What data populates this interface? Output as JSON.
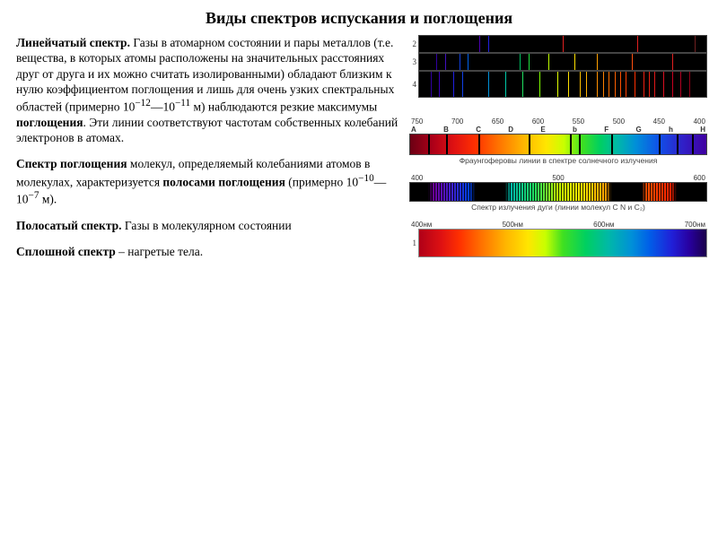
{
  "title": "Виды спектров испускания и поглощения",
  "para1_html": "<b>Линейчатый спектр.</b> Газы в атомарном состоянии и пары металлов (т.е. вещества, в которых атомы расположены на значительных расстояниях друг от друга и их можно считать изолированными) обладают близким к нулю коэффициентом поглощения и лишь для очень узких спектральных областей (примерно 10<sup>−12</sup>—10<sup>−11</sup> м) наблюдаются резкие максимумы <b>поглощения</b>. Эти линии соответствуют частотам собственных колебаний электронов в атомах.",
  "para2_html": "<b>Спектр поглощения</b> молекул, определяемый колебаниями атомов в молекулах, характеризуется <b>полосами поглощения</b> (примерно 10<sup>−10</sup>—10<sup>−7</sup> м).",
  "para3_html": "<b>Полосатый спектр.</b> Газы в молекулярном состоянии",
  "para4_html": "<b>Сплошной спектр</b> – нагретые тела.",
  "emission_bars": [
    {
      "num": "2",
      "lines": [
        {
          "pos": 21,
          "color": "#4c00b0"
        },
        {
          "pos": 24,
          "color": "#2020e0"
        },
        {
          "pos": 50,
          "color": "#e02020"
        },
        {
          "pos": 76,
          "color": "#e02020"
        },
        {
          "pos": 96,
          "color": "#702020"
        }
      ]
    },
    {
      "num": "3",
      "lines": [
        {
          "pos": 6,
          "color": "#3000a0"
        },
        {
          "pos": 9,
          "color": "#4010c0"
        },
        {
          "pos": 14,
          "color": "#1040e0"
        },
        {
          "pos": 17,
          "color": "#0060e8"
        },
        {
          "pos": 35,
          "color": "#00c060"
        },
        {
          "pos": 38,
          "color": "#20e040"
        },
        {
          "pos": 45,
          "color": "#c0ff00"
        },
        {
          "pos": 54,
          "color": "#ffe000"
        },
        {
          "pos": 62,
          "color": "#ffa000"
        },
        {
          "pos": 74,
          "color": "#ff5010"
        },
        {
          "pos": 88,
          "color": "#e02020"
        }
      ]
    },
    {
      "num": "4",
      "height": 30,
      "lines": [
        {
          "pos": 4,
          "color": "#3000a0"
        },
        {
          "pos": 7,
          "color": "#3800b8"
        },
        {
          "pos": 12,
          "color": "#2020e0"
        },
        {
          "pos": 15,
          "color": "#1040e8"
        },
        {
          "pos": 24,
          "color": "#0090d8"
        },
        {
          "pos": 30,
          "color": "#00c8a8"
        },
        {
          "pos": 36,
          "color": "#20e060"
        },
        {
          "pos": 42,
          "color": "#80ff00"
        },
        {
          "pos": 48,
          "color": "#e0ff00"
        },
        {
          "pos": 52,
          "color": "#ffe000"
        },
        {
          "pos": 56,
          "color": "#ffc000"
        },
        {
          "pos": 58,
          "color": "#ffb000"
        },
        {
          "pos": 62,
          "color": "#ff9000"
        },
        {
          "pos": 64,
          "color": "#ff8000"
        },
        {
          "pos": 66,
          "color": "#ff7000"
        },
        {
          "pos": 68,
          "color": "#ff6000"
        },
        {
          "pos": 70,
          "color": "#ff5000"
        },
        {
          "pos": 72,
          "color": "#ff4000"
        },
        {
          "pos": 75,
          "color": "#ff3000"
        },
        {
          "pos": 78,
          "color": "#f02010"
        },
        {
          "pos": 80,
          "color": "#e82010"
        },
        {
          "pos": 82,
          "color": "#e01818"
        },
        {
          "pos": 85,
          "color": "#d81020"
        },
        {
          "pos": 88,
          "color": "#c80020"
        },
        {
          "pos": 91,
          "color": "#b00020"
        },
        {
          "pos": 94,
          "color": "#900018"
        }
      ]
    }
  ],
  "fraunhofer": {
    "axis_top": [
      "750",
      "700",
      "650",
      "600",
      "550",
      "500",
      "450",
      "400"
    ],
    "letters": [
      "A",
      "B",
      "C",
      "D",
      "E",
      "b",
      "F",
      "G",
      "h",
      "H"
    ],
    "dark_lines_pct": [
      6,
      12,
      23,
      40,
      54,
      57,
      68,
      84,
      90,
      95
    ],
    "caption": "Фраунгоферовы линии в спектре солнечного излучения"
  },
  "band_axis": [
    "400",
    "500",
    "600"
  ],
  "band_caption": "Спектр излучения дуги (линии молекул C N и C₂)",
  "cont_axis": [
    "400нм",
    "500нм",
    "600нм",
    "700нм"
  ],
  "cont_num": "1"
}
